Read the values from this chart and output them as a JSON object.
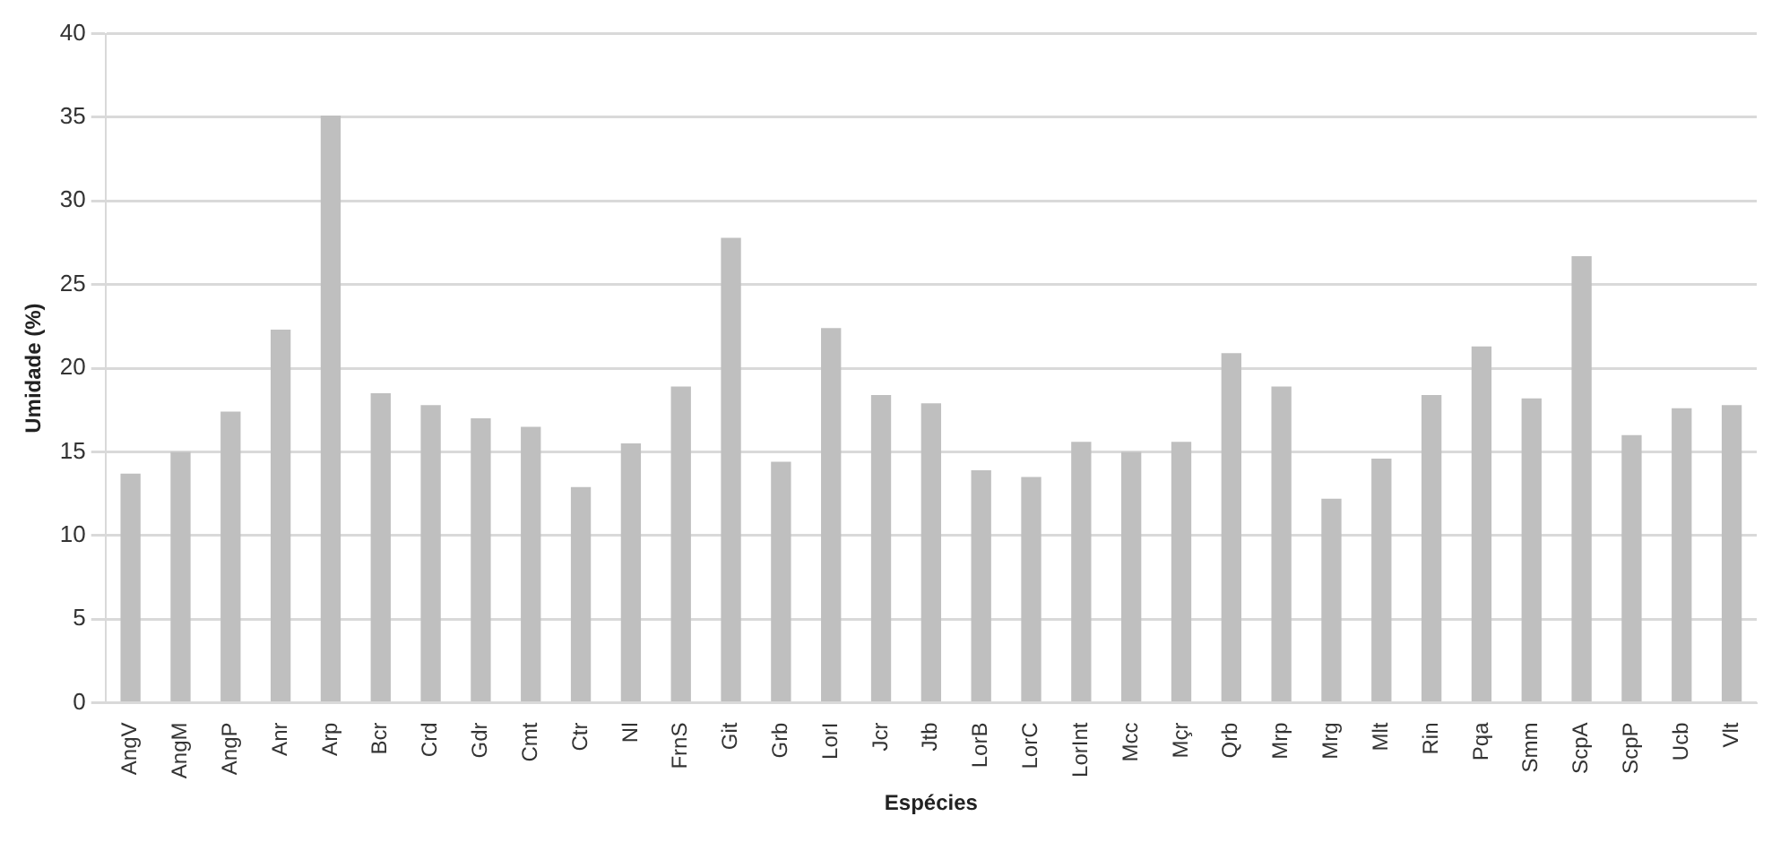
{
  "chart_data": {
    "type": "bar",
    "xlabel": "Espécies",
    "ylabel": "Umidade (%)",
    "categories": [
      "AngV",
      "AngM",
      "AngP",
      "Anr",
      "Arp",
      "Bcr",
      "Crd",
      "Gdr",
      "Cmt",
      "Ctr",
      "Nl",
      "FrnS",
      "Git",
      "Grb",
      "LorI",
      "Jcr",
      "Jtb",
      "LorB",
      "LorC",
      "LorInt",
      "Mcc",
      "Mçr",
      "Qrb",
      "Mrp",
      "Mrg",
      "Mlt",
      "Rin",
      "Pqa",
      "Smm",
      "ScpA",
      "ScpP",
      "Ucb",
      "Vlt"
    ],
    "values": [
      13.7,
      15,
      17.4,
      22.3,
      35.1,
      18.5,
      17.8,
      17,
      16.5,
      12.9,
      15.5,
      18.9,
      27.8,
      14.4,
      22.4,
      18.4,
      17.9,
      13.9,
      13.5,
      15.6,
      15,
      15.6,
      20.9,
      18.9,
      12.2,
      14.6,
      18.4,
      21.3,
      18.2,
      26.7,
      16,
      17.6,
      17.8
    ],
    "color": "#bfbfbf",
    "ylim": [
      0,
      40
    ],
    "yticks": [
      0,
      5,
      10,
      15,
      20,
      25,
      30,
      35,
      40
    ],
    "grid": "y",
    "legend": false
  }
}
